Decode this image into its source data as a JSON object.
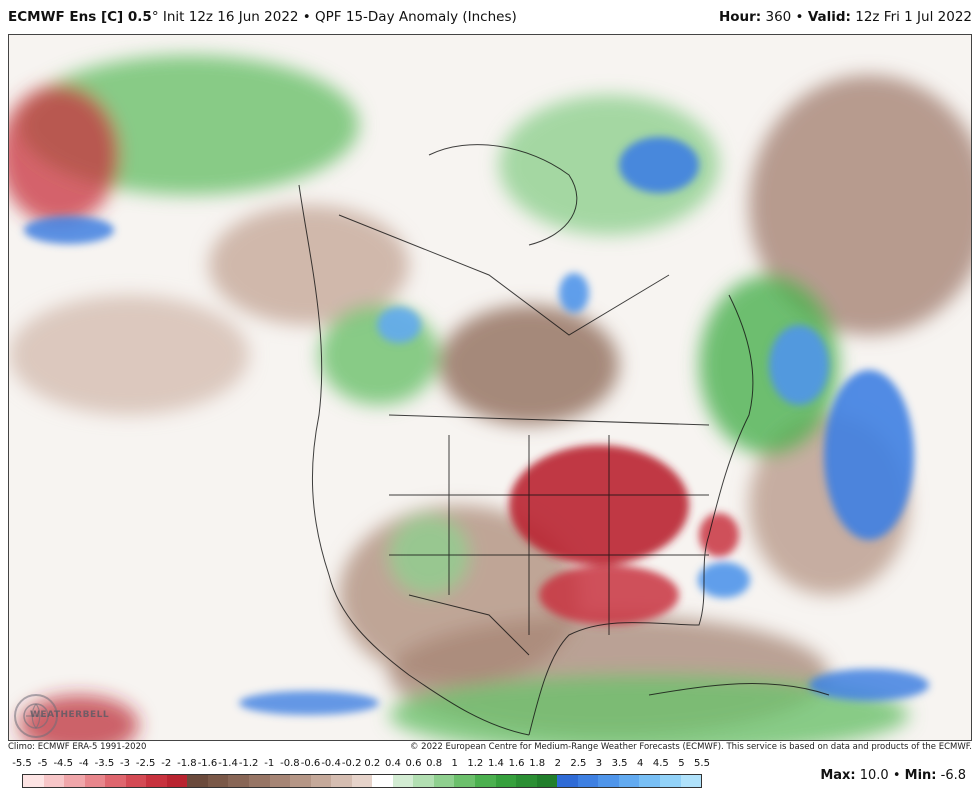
{
  "header": {
    "model_bold": "ECMWF Ens [C] 0.5",
    "degree": "°",
    "init": " Init 12z 16 Jun 2022 • QPF 15-Day Anomaly (Inches)",
    "hour_label": "Hour:",
    "hour_value": " 360 • ",
    "valid_label": "Valid:",
    "valid_value": " 12z Fri 1 Jul 2022"
  },
  "footer": {
    "climo": "Climo: ECMWF ERA-5 1991-2020",
    "copyright": "© 2022 European Centre for Medium-Range Weather Forecasts (ECMWF). This service is based on data and products of the ECMWF."
  },
  "logo": {
    "text": "WEATHERBELL",
    "icon": "weatherbell-logo-icon"
  },
  "legend": {
    "labels": [
      "-5.5",
      "-5",
      "-4.5",
      "-4",
      "-3.5",
      "-3",
      "-2.5",
      "-2",
      "-1.8",
      "-1.6",
      "-1.4",
      "-1.2",
      "-1",
      "-0.8",
      "-0.6",
      "-0.4",
      "-0.2",
      "0.2",
      "0.4",
      "0.6",
      "0.8",
      "1",
      "1.2",
      "1.4",
      "1.6",
      "1.8",
      "2",
      "2.5",
      "3",
      "3.5",
      "4",
      "4.5",
      "5",
      "5.5"
    ],
    "colors": [
      "#fde4e4",
      "#f7c6c8",
      "#f0a6aa",
      "#e8868c",
      "#df666e",
      "#d44a54",
      "#c8323e",
      "#b92430",
      "#6b4a3c",
      "#7a5848",
      "#886656",
      "#977565",
      "#a68575",
      "#b59686",
      "#c5a99a",
      "#d5bdb1",
      "#e6d3ca",
      "#ffffff",
      "#d3ecd3",
      "#b2dfb2",
      "#8fd08f",
      "#6cc06c",
      "#4bb04f",
      "#36a03d",
      "#2b8f34",
      "#217f2c",
      "#2f6bd6",
      "#3e80e2",
      "#4f95ea",
      "#62aaf0",
      "#78bff5",
      "#92d2f8",
      "#b0e2fb"
    ]
  },
  "stats": {
    "max_label": "Max:",
    "max_value": " 10.0 • ",
    "min_label": "Min:",
    "min_value": " -6.8"
  }
}
